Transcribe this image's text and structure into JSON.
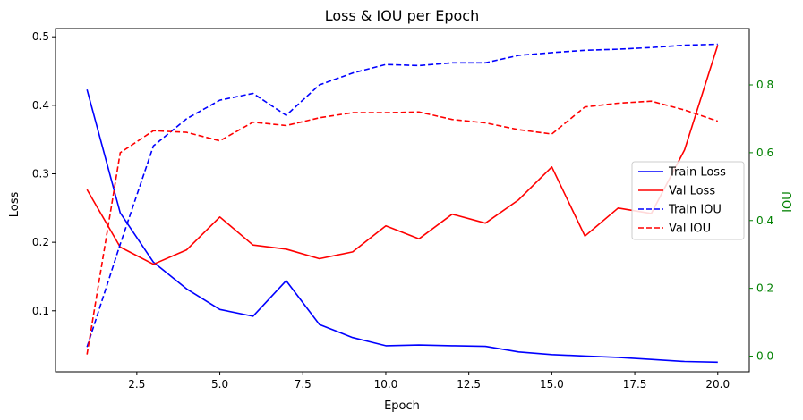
{
  "chart_data": {
    "type": "line",
    "title": "Loss & IOU per Epoch",
    "xlabel": "Epoch",
    "ylabel": "Loss",
    "y2label": "IOU",
    "xlim": [
      0.05,
      20.95
    ],
    "ylim": [
      0.011,
      0.512
    ],
    "y2lim": [
      -0.046,
      0.966
    ],
    "grid": false,
    "legend_position": "center-right",
    "x": [
      1,
      2,
      3,
      4,
      5,
      6,
      7,
      8,
      9,
      10,
      11,
      12,
      13,
      14,
      15,
      16,
      17,
      18,
      19,
      20
    ],
    "x_ticks": [
      2.5,
      5.0,
      7.5,
      10.0,
      12.5,
      15.0,
      17.5,
      20.0
    ],
    "x_tick_labels": [
      "2.5",
      "5.0",
      "7.5",
      "10.0",
      "12.5",
      "15.0",
      "17.5",
      "20.0"
    ],
    "y_ticks": [
      0.1,
      0.2,
      0.3,
      0.4,
      0.5
    ],
    "y_tick_labels": [
      "0.1",
      "0.2",
      "0.3",
      "0.4",
      "0.5"
    ],
    "y2_ticks": [
      0.0,
      0.2,
      0.4,
      0.6,
      0.8
    ],
    "y2_tick_labels": [
      "0.0",
      "0.2",
      "0.4",
      "0.6",
      "0.8"
    ],
    "series": [
      {
        "name": "Train Loss",
        "axis": "left",
        "color": "#0000ff",
        "dashed": false,
        "values": [
          0.423,
          0.243,
          0.171,
          0.132,
          0.102,
          0.092,
          0.144,
          0.08,
          0.061,
          0.049,
          0.05,
          0.049,
          0.048,
          0.04,
          0.036,
          0.034,
          0.032,
          0.029,
          0.026,
          0.025
        ]
      },
      {
        "name": "Val Loss",
        "axis": "left",
        "color": "#ff0000",
        "dashed": false,
        "values": [
          0.277,
          0.193,
          0.168,
          0.189,
          0.237,
          0.196,
          0.19,
          0.176,
          0.186,
          0.224,
          0.205,
          0.241,
          0.228,
          0.262,
          0.31,
          0.209,
          0.25,
          0.242,
          0.335,
          0.488
        ]
      },
      {
        "name": "Train IOU",
        "axis": "right",
        "color": "#0000ff",
        "dashed": true,
        "values": [
          0.027,
          0.33,
          0.62,
          0.7,
          0.755,
          0.775,
          0.71,
          0.8,
          0.835,
          0.86,
          0.857,
          0.865,
          0.865,
          0.887,
          0.895,
          0.902,
          0.905,
          0.91,
          0.917,
          0.92
        ]
      },
      {
        "name": "Val IOU",
        "axis": "right",
        "color": "#ff0000",
        "dashed": true,
        "values": [
          0.005,
          0.6,
          0.665,
          0.66,
          0.635,
          0.69,
          0.68,
          0.703,
          0.718,
          0.718,
          0.72,
          0.698,
          0.688,
          0.668,
          0.655,
          0.735,
          0.746,
          0.752,
          0.726,
          0.693
        ]
      }
    ]
  }
}
